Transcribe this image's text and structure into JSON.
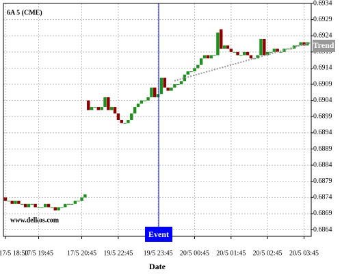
{
  "chart_data": {
    "type": "candlestick",
    "title": "6A 5 (CME)",
    "watermark": "www.delkos.com",
    "x_label": "Date",
    "categories": [
      "17/5 18:50",
      null,
      null,
      null,
      null,
      null,
      null,
      null,
      null,
      null,
      "17/5 19:45",
      null,
      null,
      null,
      null,
      null,
      null,
      null,
      null,
      null,
      null,
      null,
      null,
      "17/5 20:45",
      null,
      null,
      null,
      null,
      null,
      null,
      null,
      null,
      null,
      null,
      "19/5 22:45",
      null,
      null,
      null,
      null,
      null,
      null,
      null,
      null,
      null,
      null,
      null,
      "19/5 23:45",
      null,
      null,
      null,
      null,
      null,
      null,
      null,
      null,
      null,
      null,
      "20/5 00:45",
      null,
      null,
      null,
      null,
      null,
      null,
      null,
      null,
      null,
      null,
      "20/5 01:45",
      null,
      null,
      null,
      null,
      null,
      null,
      null,
      null,
      null,
      null,
      "20/5 02:45",
      null,
      null,
      null,
      null,
      null,
      null,
      null,
      null,
      null,
      null,
      "20/5 03:45",
      null
    ],
    "open": [
      0.6874,
      0.6873,
      0.6873,
      0.6872,
      0.6873,
      0.6872,
      0.6872,
      0.6871,
      0.6872,
      0.6872,
      0.6871,
      0.6871,
      0.6871,
      0.6872,
      0.6871,
      0.6871,
      0.687,
      0.6871,
      0.6871,
      0.6872,
      0.6872,
      0.6872,
      0.6873,
      0.6873,
      0.6874,
      0.6904,
      0.6901,
      0.6902,
      0.6902,
      0.6901,
      0.6902,
      0.6905,
      0.6901,
      0.6902,
      0.69,
      0.6898,
      0.6897,
      0.6897,
      0.6898,
      0.69,
      0.6902,
      0.6903,
      0.6904,
      0.6904,
      0.6905,
      0.6908,
      0.6905,
      0.6906,
      0.6911,
      0.6908,
      0.6907,
      0.6908,
      0.6909,
      0.6909,
      0.691,
      0.6912,
      0.6913,
      0.6913,
      0.6914,
      0.6915,
      0.6917,
      0.6918,
      0.6917,
      0.6918,
      0.6918,
      0.6926,
      0.692,
      0.6921,
      0.692,
      0.6919,
      0.6919,
      0.6918,
      0.6918,
      0.6919,
      0.6918,
      0.6917,
      0.6917,
      0.6918,
      0.6923,
      0.6918,
      0.6919,
      0.6919,
      0.692,
      0.6919,
      0.6919,
      0.692,
      0.692,
      0.692,
      0.6921,
      0.6921,
      0.6922,
      0.6921
    ],
    "close": [
      0.6873,
      0.6873,
      0.6872,
      0.6873,
      0.6872,
      0.6872,
      0.6871,
      0.6872,
      0.6872,
      0.6871,
      0.6871,
      0.6871,
      0.6872,
      0.6871,
      0.6871,
      0.687,
      0.6871,
      0.6871,
      0.6872,
      0.6872,
      0.6872,
      0.6873,
      0.6873,
      0.6874,
      0.6875,
      0.6901,
      0.6902,
      0.6902,
      0.6901,
      0.6902,
      0.6905,
      0.6901,
      0.6902,
      0.69,
      0.6898,
      0.6897,
      0.6897,
      0.6898,
      0.69,
      0.6902,
      0.6903,
      0.6904,
      0.6904,
      0.6905,
      0.6908,
      0.6905,
      0.6906,
      0.6911,
      0.6908,
      0.6907,
      0.6908,
      0.6909,
      0.6909,
      0.691,
      0.6912,
      0.6913,
      0.6913,
      0.6914,
      0.6915,
      0.6917,
      0.6918,
      0.6917,
      0.6918,
      0.6918,
      0.6925,
      0.692,
      0.6921,
      0.692,
      0.6919,
      0.6919,
      0.6918,
      0.6918,
      0.6919,
      0.6918,
      0.6917,
      0.6917,
      0.6918,
      0.6923,
      0.6918,
      0.6919,
      0.6919,
      0.692,
      0.6919,
      0.6919,
      0.692,
      0.692,
      0.692,
      0.6921,
      0.6921,
      0.6922,
      0.6921,
      0.6922
    ],
    "up_color": "#1f8f1f",
    "down_color": "#8b0000",
    "ylim": [
      0.6862,
      0.6934
    ],
    "yticks": [
      0.6934,
      0.6929,
      0.6924,
      0.6919,
      0.6914,
      0.6909,
      0.6904,
      0.6899,
      0.6894,
      0.6889,
      0.6884,
      0.6879,
      0.6874,
      0.6869,
      0.6864
    ],
    "grid": true,
    "annotations": [
      {
        "text": "Event",
        "color": "#0000ff"
      },
      {
        "text": "Trend",
        "color": "#999999"
      }
    ]
  }
}
